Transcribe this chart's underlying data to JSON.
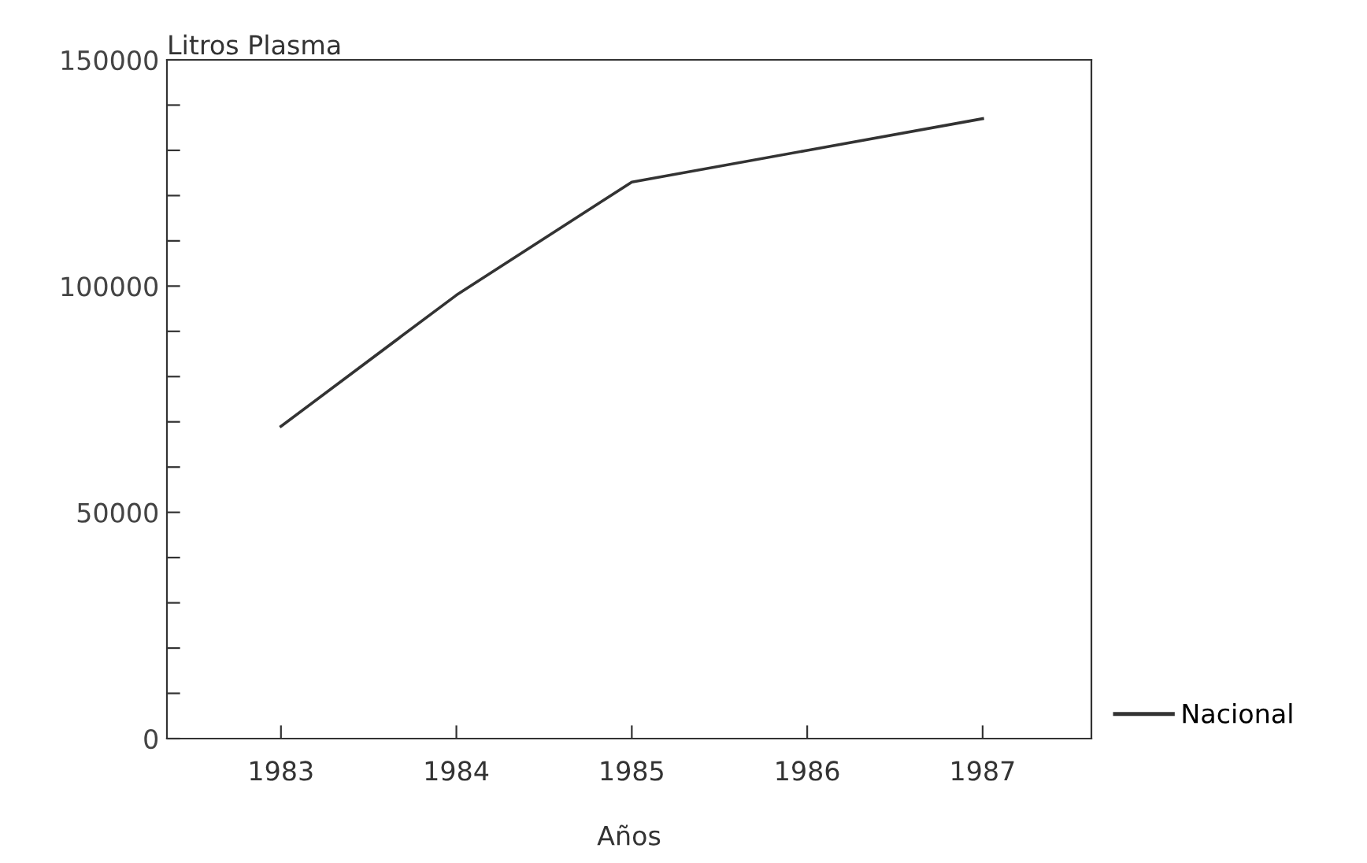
{
  "chart_data": {
    "type": "line",
    "ylabel": "Litros Plasma",
    "xlabel": "Años",
    "x": [
      1983,
      1984,
      1985,
      1986,
      1987
    ],
    "series": [
      {
        "name": "Nacional",
        "color": "#333333",
        "values": [
          69000,
          98000,
          123000,
          130000,
          137000
        ]
      }
    ],
    "xlim": [
      1982.35,
      1987.62
    ],
    "xticks": [
      1983,
      1984,
      1985,
      1986,
      1987
    ],
    "ylim": [
      0,
      150000
    ],
    "yticks": [
      0,
      {
        "value": 10000,
        "label": null
      },
      {
        "value": 20000,
        "label": null
      },
      {
        "value": 30000,
        "label": null
      },
      {
        "value": 40000,
        "label": null
      },
      50000,
      {
        "value": 60000,
        "label": null
      },
      {
        "value": 70000,
        "label": null
      },
      {
        "value": 80000,
        "label": null
      },
      {
        "value": 90000,
        "label": null
      },
      100000,
      {
        "value": 110000,
        "label": null
      },
      {
        "value": 120000,
        "label": null
      },
      {
        "value": 130000,
        "label": null
      },
      {
        "value": 140000,
        "label": null
      },
      150000
    ],
    "legend": "bottom right",
    "grid": false,
    "marker": "none",
    "line_style": "solid"
  }
}
